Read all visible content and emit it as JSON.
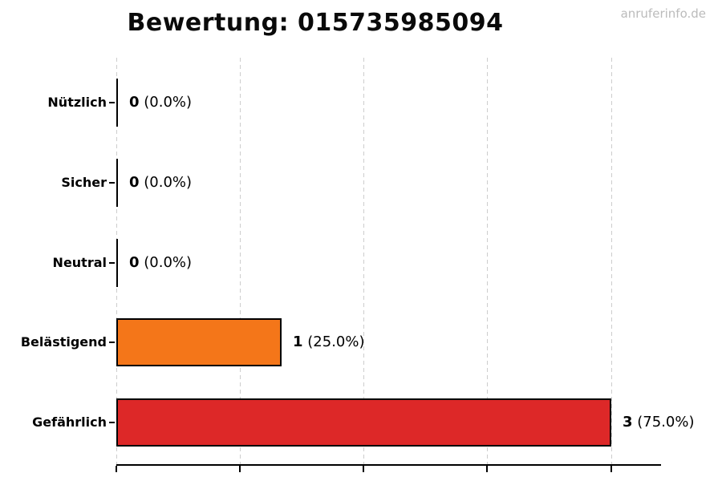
{
  "watermark": "anruferinfo.de",
  "chart_data": {
    "type": "bar",
    "orientation": "horizontal",
    "title": "Bewertung: 015735985094",
    "categories": [
      "Nützlich",
      "Sicher",
      "Neutral",
      "Belästigend",
      "Gefährlich"
    ],
    "values": [
      0,
      0,
      0,
      1,
      3
    ],
    "value_labels": [
      {
        "count": "0",
        "pct": "(0.0%)"
      },
      {
        "count": "0",
        "pct": "(0.0%)"
      },
      {
        "count": "0",
        "pct": "(0.0%)"
      },
      {
        "count": "1",
        "pct": "(25.0%)"
      },
      {
        "count": "3",
        "pct": "(75.0%)"
      }
    ],
    "bar_colors": [
      null,
      null,
      null,
      "#f47619",
      "#dd2828"
    ],
    "xlim": [
      0,
      3.3
    ],
    "x_ticks": [
      0,
      0.75,
      1.5,
      2.25,
      3
    ],
    "grid": {
      "axis": "x",
      "style": "dashed",
      "color": "#cdcdcd"
    },
    "bar_edge_color": "#000000",
    "legend_position": "none"
  }
}
